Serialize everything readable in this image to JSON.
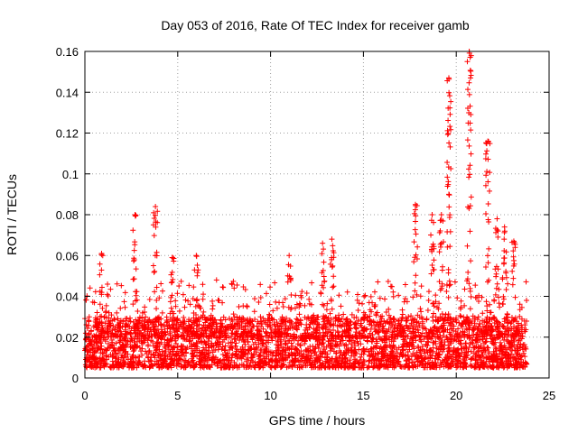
{
  "chart_data": {
    "type": "scatter",
    "title": "Day 053 of 2016, Rate Of TEC Index for receiver gamb",
    "xlabel": "GPS time / hours",
    "ylabel": "ROTI / TECUs",
    "xlim": [
      0,
      25
    ],
    "ylim": [
      0,
      0.16
    ],
    "xticks": [
      0,
      5,
      10,
      15,
      20,
      25
    ],
    "yticks": [
      0,
      0.02,
      0.04,
      0.06,
      0.08,
      0.1,
      0.12,
      0.14,
      0.16
    ],
    "xtick_labels": [
      "0",
      "5",
      "10",
      "15",
      "20",
      "25"
    ],
    "ytick_labels": [
      "0",
      "0.02",
      "0.04",
      "0.06",
      "0.08",
      "0.1",
      "0.12",
      "0.14",
      "0.16"
    ],
    "grid": true,
    "marker": "+",
    "color": "#ff0000",
    "data_range_hours": [
      0,
      23.8
    ],
    "baseline_band": [
      0.005,
      0.03
    ],
    "peaks": [
      {
        "x": 0.9,
        "y": 0.061
      },
      {
        "x": 2.7,
        "y": 0.08
      },
      {
        "x": 3.8,
        "y": 0.084
      },
      {
        "x": 4.7,
        "y": 0.059
      },
      {
        "x": 6.0,
        "y": 0.06
      },
      {
        "x": 11.0,
        "y": 0.06
      },
      {
        "x": 12.8,
        "y": 0.066
      },
      {
        "x": 13.3,
        "y": 0.068
      },
      {
        "x": 17.8,
        "y": 0.085
      },
      {
        "x": 18.7,
        "y": 0.08
      },
      {
        "x": 19.2,
        "y": 0.08
      },
      {
        "x": 19.6,
        "y": 0.147
      },
      {
        "x": 20.7,
        "y": 0.16
      },
      {
        "x": 21.7,
        "y": 0.116
      },
      {
        "x": 22.2,
        "y": 0.078
      },
      {
        "x": 22.6,
        "y": 0.074
      },
      {
        "x": 23.1,
        "y": 0.067
      }
    ]
  }
}
